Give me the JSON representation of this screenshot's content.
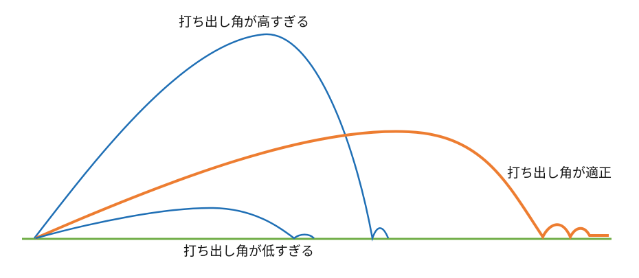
{
  "labels": {
    "high": "打ち出し角が高すぎる",
    "optimal": "打ち出し角が適正",
    "low": "打ち出し角が低すぎる"
  },
  "colors": {
    "ground": "#70ad47",
    "high_trajectory": "#1f6fb5",
    "optimal_trajectory": "#ed7d31",
    "low_trajectory": "#1f6fb5"
  }
}
